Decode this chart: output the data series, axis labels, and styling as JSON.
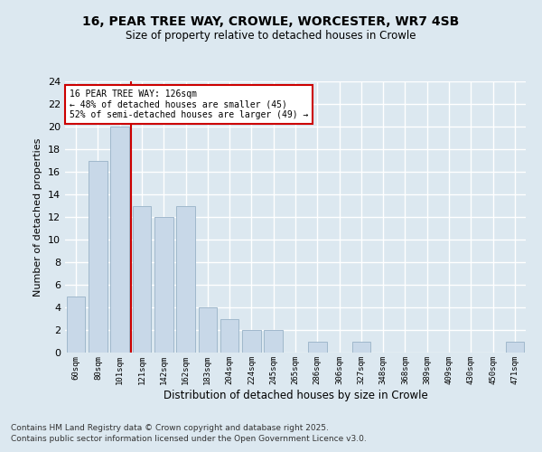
{
  "title1": "16, PEAR TREE WAY, CROWLE, WORCESTER, WR7 4SB",
  "title2": "Size of property relative to detached houses in Crowle",
  "xlabel": "Distribution of detached houses by size in Crowle",
  "ylabel": "Number of detached properties",
  "categories": [
    "60sqm",
    "80sqm",
    "101sqm",
    "121sqm",
    "142sqm",
    "162sqm",
    "183sqm",
    "204sqm",
    "224sqm",
    "245sqm",
    "265sqm",
    "286sqm",
    "306sqm",
    "327sqm",
    "348sqm",
    "368sqm",
    "389sqm",
    "409sqm",
    "430sqm",
    "450sqm",
    "471sqm"
  ],
  "values": [
    5,
    17,
    20,
    13,
    12,
    13,
    4,
    3,
    2,
    2,
    0,
    1,
    0,
    1,
    0,
    0,
    0,
    0,
    0,
    0,
    1
  ],
  "bar_color": "#c8d8e8",
  "bar_edge_color": "#a0b8cc",
  "vline_index": 2.5,
  "vline_color": "#cc0000",
  "ylim": [
    0,
    24
  ],
  "yticks": [
    0,
    2,
    4,
    6,
    8,
    10,
    12,
    14,
    16,
    18,
    20,
    22,
    24
  ],
  "annotation_text": "16 PEAR TREE WAY: 126sqm\n← 48% of detached houses are smaller (45)\n52% of semi-detached houses are larger (49) →",
  "annotation_box_color": "#cc0000",
  "footer1": "Contains HM Land Registry data © Crown copyright and database right 2025.",
  "footer2": "Contains public sector information licensed under the Open Government Licence v3.0.",
  "bg_color": "#dce8f0",
  "plot_bg_color": "#dce8f0",
  "grid_color": "#ffffff"
}
